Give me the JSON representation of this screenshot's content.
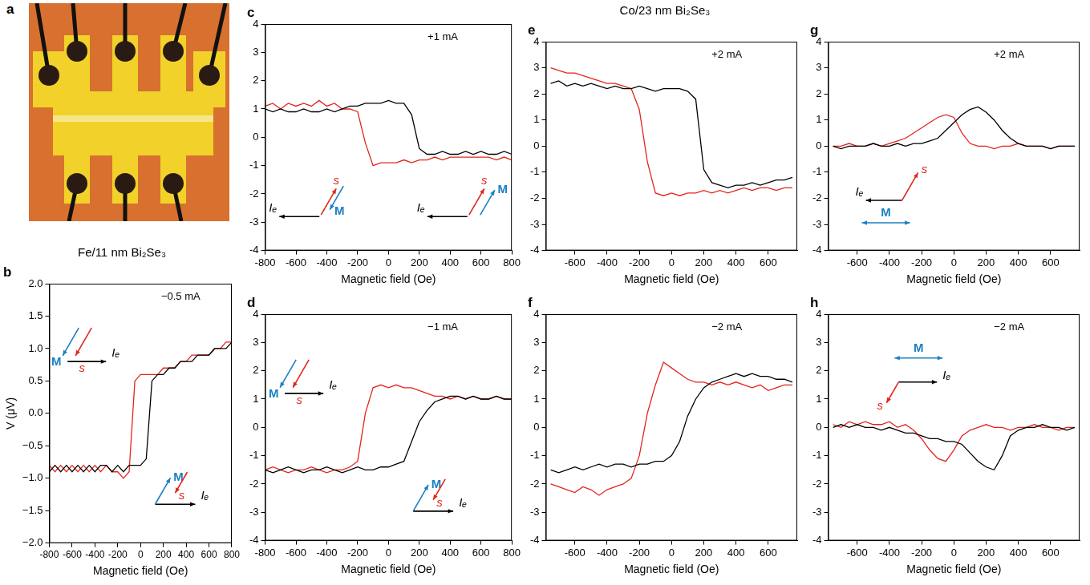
{
  "photo": {
    "panel": "a"
  },
  "chart_data": [
    {
      "panel": "b",
      "type": "line",
      "title": "Fe/11 nm Bi₂Se₃",
      "x_label": "Magnetic field (Oe)",
      "y_label": "V (μV)",
      "annotations": [
        "−0.5 mA"
      ],
      "inset_labels": [
        [
          "Iₑ",
          "s",
          "M"
        ],
        [
          "Iₑ",
          "s",
          "M"
        ]
      ],
      "xlim": [
        -800,
        800
      ],
      "xticks": [
        -800,
        -600,
        -400,
        -200,
        0,
        200,
        400,
        600,
        800
      ],
      "ylim": [
        -2,
        2
      ],
      "yticks": [
        {
          "value": -2,
          "label": "−2.0"
        },
        {
          "value": -1.5,
          "label": "−1.5"
        },
        {
          "value": -1,
          "label": "−1.0"
        },
        {
          "value": -0.5,
          "label": "−0.5"
        },
        {
          "value": 0,
          "label": "0.0"
        },
        0.5,
        {
          "value": 1,
          "label": "1.0"
        },
        1.5,
        {
          "value": 2,
          "label": "2.0"
        }
      ],
      "grid": false,
      "x": [
        -800,
        -750,
        -700,
        -650,
        -600,
        -550,
        -500,
        -450,
        -400,
        -350,
        -300,
        -250,
        -200,
        -150,
        -100,
        -50,
        0,
        50,
        100,
        150,
        200,
        250,
        300,
        350,
        400,
        450,
        500,
        550,
        600,
        650,
        700,
        750,
        800
      ],
      "series": [
        {
          "color": "#000000",
          "values": [
            -0.9,
            -0.8,
            -0.9,
            -0.8,
            -0.9,
            -0.8,
            -0.9,
            -0.8,
            -0.9,
            -0.8,
            -0.8,
            -0.9,
            -0.8,
            -0.9,
            -0.8,
            -0.8,
            -0.8,
            -0.7,
            0.5,
            0.6,
            0.6,
            0.7,
            0.7,
            0.8,
            0.8,
            0.8,
            0.9,
            0.9,
            0.9,
            1.0,
            1.0,
            1.0,
            1.1
          ]
        },
        {
          "color": "#e3241d",
          "values": [
            -0.8,
            -0.9,
            -0.8,
            -0.9,
            -0.8,
            -0.9,
            -0.8,
            -0.9,
            -0.8,
            -0.9,
            -0.8,
            -0.9,
            -0.9,
            -1.0,
            -0.9,
            0.5,
            0.6,
            0.6,
            0.6,
            0.6,
            0.7,
            0.7,
            0.7,
            0.8,
            0.8,
            0.9,
            0.9,
            0.9,
            0.9,
            1.0,
            1.0,
            1.1,
            1.1
          ]
        }
      ]
    },
    {
      "panel": "c",
      "type": "line",
      "x_label": "Magnetic field (Oe)",
      "annotations": [
        "+1 mA"
      ],
      "inset_labels": [
        [
          "Iₑ",
          "s",
          "M"
        ],
        [
          "Iₑ",
          "s",
          "M"
        ]
      ],
      "xlim": [
        -800,
        800
      ],
      "xticks": [
        -800,
        -600,
        -400,
        -200,
        0,
        200,
        400,
        600,
        800
      ],
      "ylim": [
        -4,
        4
      ],
      "yticks": [
        -4,
        -3,
        -2,
        -1,
        0,
        1,
        2,
        3,
        4
      ],
      "grid": false,
      "x": [
        -800,
        -750,
        -700,
        -650,
        -600,
        -550,
        -500,
        -450,
        -400,
        -350,
        -300,
        -250,
        -200,
        -150,
        -100,
        -50,
        0,
        50,
        100,
        150,
        200,
        250,
        300,
        350,
        400,
        450,
        500,
        550,
        600,
        650,
        700,
        750,
        800
      ],
      "series": [
        {
          "color": "#000000",
          "values": [
            1.0,
            0.9,
            1.0,
            0.9,
            0.9,
            1.0,
            0.9,
            0.9,
            1.0,
            0.9,
            1.0,
            1.1,
            1.1,
            1.2,
            1.2,
            1.2,
            1.3,
            1.2,
            1.2,
            0.8,
            -0.4,
            -0.6,
            -0.6,
            -0.5,
            -0.6,
            -0.6,
            -0.5,
            -0.6,
            -0.5,
            -0.6,
            -0.6,
            -0.5,
            -0.6
          ]
        },
        {
          "color": "#e3241d",
          "values": [
            1.1,
            1.2,
            1.0,
            1.2,
            1.1,
            1.2,
            1.1,
            1.3,
            1.1,
            1.2,
            1.0,
            1.0,
            0.9,
            -0.2,
            -1.0,
            -0.9,
            -0.9,
            -0.9,
            -0.8,
            -0.9,
            -0.8,
            -0.8,
            -0.7,
            -0.8,
            -0.7,
            -0.7,
            -0.7,
            -0.7,
            -0.7,
            -0.7,
            -0.8,
            -0.7,
            -0.8
          ]
        }
      ]
    },
    {
      "panel": "d",
      "type": "line",
      "x_label": "Magnetic field (Oe)",
      "annotations": [
        "−1 mA"
      ],
      "inset_labels": [
        [
          "Iₑ",
          "s",
          "M"
        ],
        [
          "Iₑ",
          "s",
          "M"
        ]
      ],
      "xlim": [
        -800,
        800
      ],
      "xticks": [
        -800,
        -600,
        -400,
        -200,
        0,
        200,
        400,
        600,
        800
      ],
      "ylim": [
        -4,
        4
      ],
      "yticks": [
        -4,
        -3,
        -2,
        -1,
        0,
        1,
        2,
        3,
        4
      ],
      "grid": false,
      "x": [
        -800,
        -750,
        -700,
        -650,
        -600,
        -550,
        -500,
        -450,
        -400,
        -350,
        -300,
        -250,
        -200,
        -150,
        -100,
        -50,
        0,
        50,
        100,
        150,
        200,
        250,
        300,
        350,
        400,
        450,
        500,
        550,
        600,
        650,
        700,
        750,
        800
      ],
      "series": [
        {
          "color": "#000000",
          "values": [
            -1.5,
            -1.6,
            -1.5,
            -1.4,
            -1.5,
            -1.6,
            -1.5,
            -1.5,
            -1.4,
            -1.5,
            -1.6,
            -1.5,
            -1.4,
            -1.5,
            -1.5,
            -1.4,
            -1.4,
            -1.3,
            -1.2,
            -0.5,
            0.2,
            0.6,
            0.9,
            1.0,
            1.1,
            1.1,
            1.0,
            1.1,
            1.0,
            1.0,
            1.1,
            1.0,
            1.0
          ]
        },
        {
          "color": "#e3241d",
          "values": [
            -1.5,
            -1.4,
            -1.5,
            -1.6,
            -1.5,
            -1.5,
            -1.4,
            -1.5,
            -1.6,
            -1.5,
            -1.5,
            -1.4,
            -1.2,
            0.5,
            1.4,
            1.5,
            1.4,
            1.5,
            1.4,
            1.4,
            1.3,
            1.2,
            1.1,
            1.1,
            1.0,
            1.1,
            1.0,
            1.1,
            1.0,
            1.0,
            1.1,
            1.0,
            1.0
          ]
        }
      ]
    },
    {
      "panel": "e",
      "type": "line",
      "title": "Co/23 nm Bi₂Se₃",
      "x_label": "Magnetic field (Oe)",
      "annotations": [
        "+2 mA"
      ],
      "xlim": [
        -780,
        780
      ],
      "xticks": [
        -600,
        -400,
        -200,
        0,
        200,
        400,
        600
      ],
      "ylim": [
        -4,
        4
      ],
      "yticks": [
        -4,
        -3,
        -2,
        -1,
        0,
        1,
        2,
        3,
        4
      ],
      "grid": false,
      "x": [
        -750,
        -700,
        -650,
        -600,
        -550,
        -500,
        -450,
        -400,
        -350,
        -300,
        -250,
        -200,
        -150,
        -100,
        -50,
        0,
        50,
        100,
        150,
        200,
        250,
        300,
        350,
        400,
        450,
        500,
        550,
        600,
        650,
        700,
        750
      ],
      "series": [
        {
          "color": "#000000",
          "values": [
            2.4,
            2.5,
            2.3,
            2.4,
            2.3,
            2.4,
            2.3,
            2.2,
            2.3,
            2.2,
            2.2,
            2.3,
            2.2,
            2.1,
            2.2,
            2.2,
            2.2,
            2.1,
            1.8,
            -0.9,
            -1.4,
            -1.5,
            -1.6,
            -1.5,
            -1.5,
            -1.4,
            -1.5,
            -1.4,
            -1.3,
            -1.3,
            -1.2
          ]
        },
        {
          "color": "#e3241d",
          "values": [
            3.0,
            2.9,
            2.8,
            2.8,
            2.7,
            2.6,
            2.5,
            2.4,
            2.4,
            2.3,
            2.2,
            1.4,
            -0.6,
            -1.8,
            -1.9,
            -1.8,
            -1.9,
            -1.8,
            -1.8,
            -1.7,
            -1.8,
            -1.7,
            -1.8,
            -1.7,
            -1.6,
            -1.7,
            -1.6,
            -1.6,
            -1.7,
            -1.6,
            -1.6
          ]
        }
      ]
    },
    {
      "panel": "f",
      "type": "line",
      "x_label": "Magnetic field (Oe)",
      "annotations": [
        "−2 mA"
      ],
      "xlim": [
        -780,
        780
      ],
      "xticks": [
        -600,
        -400,
        -200,
        0,
        200,
        400,
        600
      ],
      "ylim": [
        -4,
        4
      ],
      "yticks": [
        -4,
        -3,
        -2,
        -1,
        0,
        1,
        2,
        3,
        4
      ],
      "grid": false,
      "x": [
        -750,
        -700,
        -650,
        -600,
        -550,
        -500,
        -450,
        -400,
        -350,
        -300,
        -250,
        -200,
        -150,
        -100,
        -50,
        0,
        50,
        100,
        150,
        200,
        250,
        300,
        350,
        400,
        450,
        500,
        550,
        600,
        650,
        700,
        750
      ],
      "series": [
        {
          "color": "#000000",
          "values": [
            -1.5,
            -1.6,
            -1.5,
            -1.4,
            -1.5,
            -1.4,
            -1.3,
            -1.4,
            -1.3,
            -1.3,
            -1.4,
            -1.3,
            -1.3,
            -1.2,
            -1.2,
            -1.0,
            -0.5,
            0.4,
            1.0,
            1.4,
            1.6,
            1.7,
            1.8,
            1.9,
            1.8,
            1.9,
            1.8,
            1.8,
            1.7,
            1.7,
            1.6
          ]
        },
        {
          "color": "#e3241d",
          "values": [
            -2.0,
            -2.1,
            -2.2,
            -2.3,
            -2.1,
            -2.2,
            -2.4,
            -2.2,
            -2.1,
            -2.0,
            -1.8,
            -1.0,
            0.5,
            1.5,
            2.3,
            2.1,
            1.9,
            1.7,
            1.6,
            1.6,
            1.5,
            1.6,
            1.5,
            1.6,
            1.5,
            1.4,
            1.5,
            1.3,
            1.4,
            1.5,
            1.5
          ]
        }
      ]
    },
    {
      "panel": "g",
      "type": "line",
      "x_label": "Magnetic field (Oe)",
      "annotations": [
        "+2 mA"
      ],
      "inset_labels": [
        [
          "Iₑ",
          "s",
          "M"
        ]
      ],
      "xlim": [
        -780,
        780
      ],
      "xticks": [
        -600,
        -400,
        -200,
        0,
        200,
        400,
        600
      ],
      "ylim": [
        -4,
        4
      ],
      "yticks": [
        -4,
        -3,
        -2,
        -1,
        0,
        1,
        2,
        3,
        4
      ],
      "grid": false,
      "x": [
        -750,
        -700,
        -650,
        -600,
        -550,
        -500,
        -450,
        -400,
        -350,
        -300,
        -250,
        -200,
        -150,
        -100,
        -50,
        0,
        50,
        100,
        150,
        200,
        250,
        300,
        350,
        400,
        450,
        500,
        550,
        600,
        650,
        700,
        750
      ],
      "series": [
        {
          "color": "#000000",
          "values": [
            0.0,
            -0.1,
            0.0,
            0.0,
            0.0,
            0.1,
            0.0,
            0.0,
            0.1,
            0.0,
            0.1,
            0.1,
            0.2,
            0.3,
            0.6,
            0.9,
            1.2,
            1.4,
            1.5,
            1.3,
            1.0,
            0.6,
            0.3,
            0.1,
            0.0,
            0.0,
            0.0,
            -0.1,
            0.0,
            0.0,
            0.0
          ]
        },
        {
          "color": "#e3241d",
          "values": [
            0.0,
            0.0,
            0.1,
            0.0,
            0.0,
            0.1,
            0.0,
            0.1,
            0.2,
            0.3,
            0.5,
            0.7,
            0.9,
            1.1,
            1.2,
            1.1,
            0.5,
            0.1,
            0.0,
            0.0,
            -0.1,
            0.0,
            0.0,
            0.1,
            0.0,
            0.0,
            0.0,
            -0.1,
            0.0,
            0.0,
            0.0
          ]
        }
      ]
    },
    {
      "panel": "h",
      "type": "line",
      "x_label": "Magnetic field (Oe)",
      "annotations": [
        "−2 mA"
      ],
      "inset_labels": [
        [
          "Iₑ",
          "s",
          "M"
        ]
      ],
      "xlim": [
        -780,
        780
      ],
      "xticks": [
        -600,
        -400,
        -200,
        0,
        200,
        400,
        600
      ],
      "ylim": [
        -4,
        4
      ],
      "yticks": [
        -4,
        -3,
        -2,
        -1,
        0,
        1,
        2,
        3,
        4
      ],
      "grid": false,
      "x": [
        -750,
        -700,
        -650,
        -600,
        -550,
        -500,
        -450,
        -400,
        -350,
        -300,
        -250,
        -200,
        -150,
        -100,
        -50,
        0,
        50,
        100,
        150,
        200,
        250,
        300,
        350,
        400,
        450,
        500,
        550,
        600,
        650,
        700,
        750
      ],
      "series": [
        {
          "color": "#000000",
          "values": [
            0.0,
            0.1,
            0.0,
            0.1,
            0.0,
            0.0,
            -0.1,
            0.0,
            -0.1,
            -0.2,
            -0.2,
            -0.3,
            -0.4,
            -0.4,
            -0.5,
            -0.5,
            -0.6,
            -0.9,
            -1.2,
            -1.4,
            -1.5,
            -1.0,
            -0.3,
            -0.1,
            0.0,
            0.0,
            0.1,
            0.0,
            0.0,
            -0.1,
            0.0
          ]
        },
        {
          "color": "#e3241d",
          "values": [
            0.1,
            0.0,
            0.2,
            0.1,
            0.2,
            0.1,
            0.1,
            0.2,
            0.0,
            0.1,
            -0.1,
            -0.4,
            -0.8,
            -1.1,
            -1.2,
            -0.8,
            -0.3,
            -0.1,
            0.0,
            0.1,
            0.0,
            0.0,
            -0.1,
            0.0,
            0.0,
            0.1,
            0.0,
            0.0,
            -0.1,
            0.0,
            0.0
          ]
        }
      ]
    }
  ]
}
